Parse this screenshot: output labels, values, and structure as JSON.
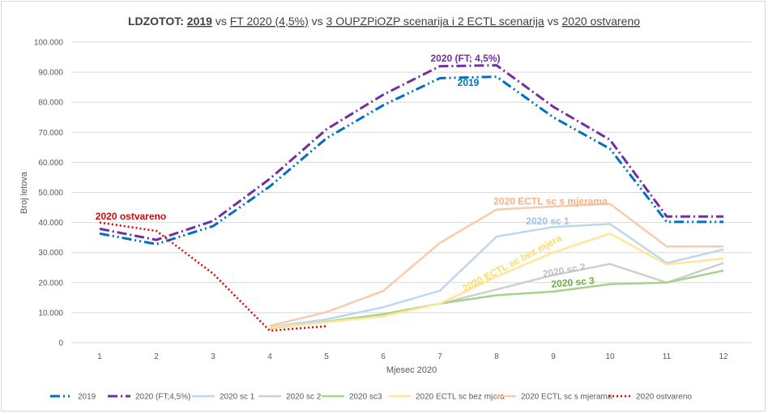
{
  "chart_data": {
    "type": "line",
    "title_parts": [
      {
        "text": "LDZOTOT: ",
        "bold": true,
        "underline": false
      },
      {
        "text": "2019",
        "bold": true,
        "underline": true
      },
      {
        "text": " vs ",
        "bold": false,
        "underline": false
      },
      {
        "text": "FT 2020 (4,5%)",
        "bold": false,
        "underline": true
      },
      {
        "text": " vs ",
        "bold": false,
        "underline": false
      },
      {
        "text": "3 OUPZPiOZP scenarija i 2 ECTL scenarija",
        "bold": false,
        "underline": true
      },
      {
        "text": " vs ",
        "bold": false,
        "underline": false
      },
      {
        "text": "2020 ostvareno",
        "bold": false,
        "underline": true
      }
    ],
    "xlabel": "Mjesec 2020",
    "ylabel": "Broj letova",
    "categories": [
      "1",
      "2",
      "3",
      "4",
      "5",
      "6",
      "7",
      "8",
      "9",
      "10",
      "11",
      "12"
    ],
    "ylim": [
      0,
      100000
    ],
    "yticks": [
      {
        "value": 0,
        "label": "0"
      },
      {
        "value": 10000,
        "label": "10.000"
      },
      {
        "value": 20000,
        "label": "20.000"
      },
      {
        "value": 30000,
        "label": "30.000"
      },
      {
        "value": 40000,
        "label": "40.000"
      },
      {
        "value": 50000,
        "label": "50.000"
      },
      {
        "value": 60000,
        "label": "60.000"
      },
      {
        "value": 70000,
        "label": "70.000"
      },
      {
        "value": 80000,
        "label": "80.000"
      },
      {
        "value": 90000,
        "label": "90.000"
      },
      {
        "value": 100000,
        "label": "100.000"
      }
    ],
    "grid": true,
    "legend_position": "bottom",
    "series": [
      {
        "name": "2019",
        "color": "#0070c0",
        "dash": "12,4,2,4,2,4",
        "width": 3,
        "values": [
          36300,
          32800,
          38800,
          52000,
          68000,
          79000,
          88000,
          88500,
          75000,
          64500,
          40200,
          40200
        ]
      },
      {
        "name": "2020 (FT;4,5%)",
        "color": "#7030a0",
        "dash": "12,4,2,4",
        "width": 3,
        "values": [
          37900,
          34200,
          40500,
          54500,
          71000,
          82500,
          92000,
          92300,
          78500,
          67500,
          42000,
          42000
        ]
      },
      {
        "name": "2020 sc 1",
        "color": "#bdd7ee",
        "dash": "",
        "width": 2.5,
        "values": [
          null,
          null,
          null,
          5200,
          7800,
          11800,
          17300,
          35300,
          38500,
          39500,
          26500,
          31000
        ]
      },
      {
        "name": "2020 sc 2",
        "color": "#d0cece",
        "dash": "",
        "width": 2.5,
        "values": [
          null,
          null,
          null,
          5000,
          6800,
          9200,
          13000,
          17700,
          22500,
          26200,
          20000,
          26500
        ]
      },
      {
        "name": "2020 sc3",
        "color": "#a9d18e",
        "dash": "",
        "width": 2.5,
        "values": [
          null,
          null,
          null,
          4800,
          7000,
          9500,
          13000,
          15800,
          17000,
          19500,
          20000,
          24000
        ]
      },
      {
        "name": "2020 ECTL sc bez mjera",
        "color": "#ffe699",
        "dash": "",
        "width": 2.5,
        "values": [
          null,
          null,
          null,
          5000,
          6800,
          8800,
          13000,
          22000,
          30000,
          36300,
          26000,
          28000
        ]
      },
      {
        "name": "2020 ECTL sc s mjerama",
        "color": "#f8cbad",
        "dash": "",
        "width": 2.5,
        "values": [
          null,
          null,
          null,
          5600,
          10200,
          17200,
          33200,
          44300,
          45300,
          46200,
          32000,
          32000
        ]
      },
      {
        "name": "2020 ostvareno",
        "color": "#e00000",
        "dash": "2,3",
        "width": 2.5,
        "values": [
          40000,
          37200,
          23000,
          4000,
          5500,
          null,
          null,
          null,
          null,
          null,
          null,
          null
        ]
      }
    ],
    "annotations": [
      {
        "text": "2020 (FT; 4,5%)",
        "color": "#7030a0",
        "x": 7.45,
        "y": 93500,
        "rotate": 0
      },
      {
        "text": "2019",
        "color": "#0070c0",
        "x": 7.5,
        "y": 85500,
        "rotate": 0
      },
      {
        "text": "2020 ostvareno",
        "color": "#e00000",
        "x": 1.55,
        "y": 41000,
        "rotate": 0
      },
      {
        "text": "2020 ECTL sc s mjerama",
        "color": "#f4b183",
        "x": 8.95,
        "y": 46000,
        "rotate": 0
      },
      {
        "text": "2020 sc 1",
        "color": "#9dc3e6",
        "x": 8.9,
        "y": 39300,
        "rotate": 0
      },
      {
        "text": "2020 ECTL sc bez mjera",
        "color": "#ffd966",
        "x": 8.3,
        "y": 25500,
        "rotate": -28
      },
      {
        "text": "2020 sc 2",
        "color": "#bfbfbf",
        "x": 9.2,
        "y": 23000,
        "rotate": -10
      },
      {
        "text": "2020 sc 3",
        "color": "#70ad47",
        "x": 9.35,
        "y": 19000,
        "rotate": -5
      }
    ]
  }
}
